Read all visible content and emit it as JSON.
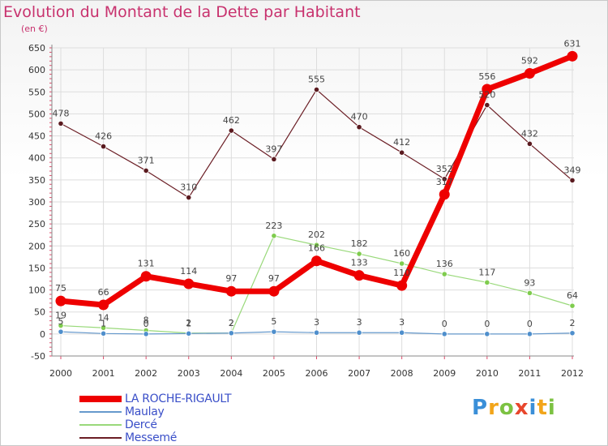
{
  "chart_data": {
    "type": "line",
    "title": "Evolution du Montant de la Dette par Habitant",
    "subtitle": "(en €)",
    "categories": [
      "2000",
      "2001",
      "2002",
      "2003",
      "2004",
      "2005",
      "2006",
      "2007",
      "2008",
      "2009",
      "2010",
      "2011",
      "2012"
    ],
    "ylim": [
      -50,
      650
    ],
    "yticks": [
      -50,
      0,
      50,
      100,
      150,
      200,
      250,
      300,
      350,
      400,
      450,
      500,
      550,
      600,
      650
    ],
    "grid": true,
    "series": [
      {
        "name": "Messemé",
        "color": "#6b1e25",
        "width": 1.2,
        "point_color": "#5a1a1f",
        "values": [
          478,
          426,
          371,
          310,
          462,
          397,
          555,
          470,
          412,
          352,
          520,
          432,
          349
        ]
      },
      {
        "name": "Dercé",
        "color": "#99d97a",
        "width": 1.2,
        "point_color": "#7fcc4e",
        "values": [
          19,
          14,
          8,
          2,
          2,
          223,
          202,
          182,
          160,
          136,
          117,
          93,
          64
        ]
      },
      {
        "name": "Maulay",
        "color": "#6699cc",
        "width": 1.2,
        "point_color": "#4f8fcc",
        "values": [
          5,
          1,
          0,
          1,
          2,
          5,
          3,
          3,
          3,
          0,
          0,
          0,
          2
        ]
      },
      {
        "name": "LA ROCHE-RIGAULT",
        "color": "#ee0000",
        "width": 7,
        "point_color": "#ee0000",
        "values": [
          75,
          66,
          131,
          114,
          97,
          97,
          166,
          133,
          110,
          317,
          556,
          592,
          631
        ]
      }
    ],
    "legend_order": [
      "LA ROCHE-RIGAULT",
      "Maulay",
      "Dercé",
      "Messemé"
    ],
    "legend_placement": "bottom-left"
  },
  "logo": {
    "letters": [
      {
        "ch": "P",
        "color": "#3a8fd8"
      },
      {
        "ch": "r",
        "color": "#f2a51a"
      },
      {
        "ch": "o",
        "color": "#7cc242"
      },
      {
        "ch": "x",
        "color": "#e8462c"
      },
      {
        "ch": "i",
        "color": "#3a8fd8"
      },
      {
        "ch": "t",
        "color": "#f2a51a"
      },
      {
        "ch": "i",
        "color": "#7cc242"
      }
    ]
  }
}
